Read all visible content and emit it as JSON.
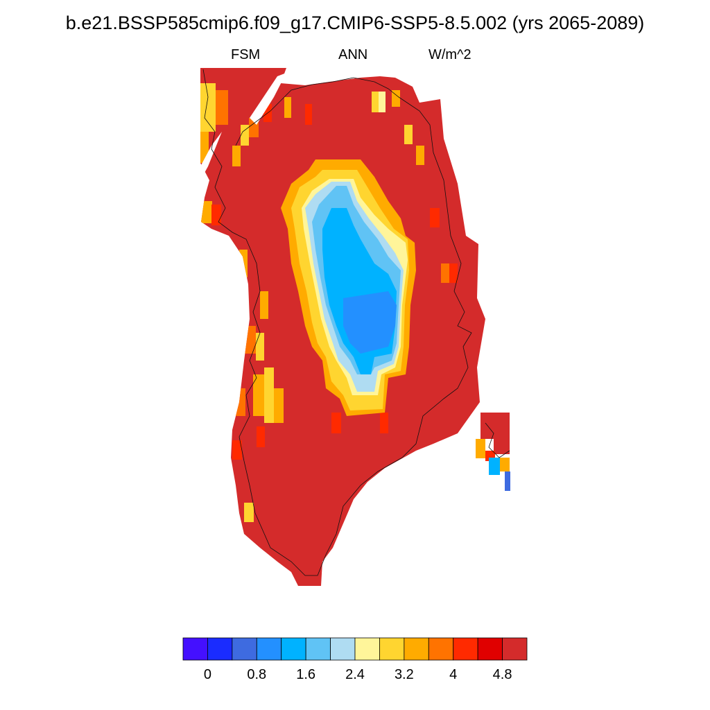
{
  "title": "b.e21.BSSP585cmip6.f09_g17.CMIP6-SSP5-8.5.002 (yrs 2065-2089)",
  "subtitle": {
    "left": "FSM",
    "center": "ANN",
    "right": "W/m^2"
  },
  "colorbar": {
    "colors": [
      "#4410ff",
      "#1a2cff",
      "#3e6be0",
      "#2390ff",
      "#00b2ff",
      "#60c3f5",
      "#afdcf2",
      "#fff59a",
      "#ffd530",
      "#ffab00",
      "#ff7300",
      "#ff2a00",
      "#e00000",
      "#d42b2b"
    ],
    "labels": [
      "0",
      "0.8",
      "1.6",
      "2.4",
      "3.2",
      "4",
      "4.8"
    ]
  },
  "map_data": {
    "region": "Greenland",
    "variable": "FSM",
    "units": "W/m^2",
    "period": "ANN",
    "dominant_value": "above 4.8 over most of the ice margin",
    "interior_minimum": "about 1.2 to 2.4 in the central ice sheet"
  }
}
